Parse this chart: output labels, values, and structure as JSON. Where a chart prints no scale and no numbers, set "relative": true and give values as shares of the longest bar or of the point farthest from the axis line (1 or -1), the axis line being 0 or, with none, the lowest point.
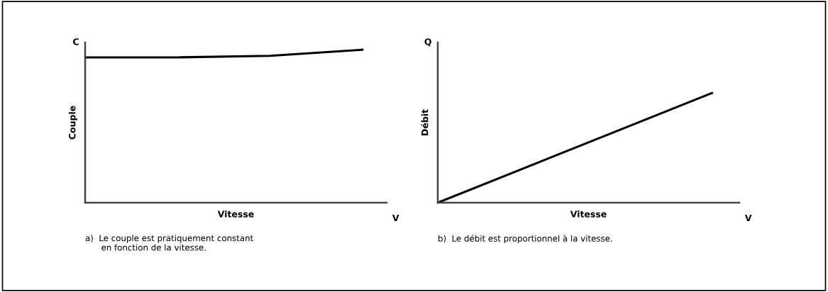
{
  "chart_data": [
    {
      "type": "line",
      "relative": true,
      "ylabel": "Couple",
      "xlabel": "Vitesse",
      "categories": [
        null,
        null,
        null,
        null
      ],
      "series": [
        {
          "color": "#000000",
          "values": [
            0.95,
            0.95,
            0.96,
            1
          ]
        }
      ],
      "tick_labels": false,
      "grid": false,
      "legend": false,
      "annotations": [
        "C",
        "V",
        "a)  Le couple est pratiquement constant\n      en fonction de la vitesse."
      ]
    },
    {
      "type": "line",
      "relative": true,
      "ylabel": "Débit",
      "xlabel": "Vitesse",
      "categories": [
        null,
        null
      ],
      "series": [
        {
          "color": "#000000",
          "values": [
            0,
            1
          ]
        }
      ],
      "tick_labels": false,
      "grid": false,
      "legend": false,
      "annotations": [
        "Q",
        "V",
        "b)  Le débit est proportionnel à la vitesse."
      ]
    }
  ]
}
